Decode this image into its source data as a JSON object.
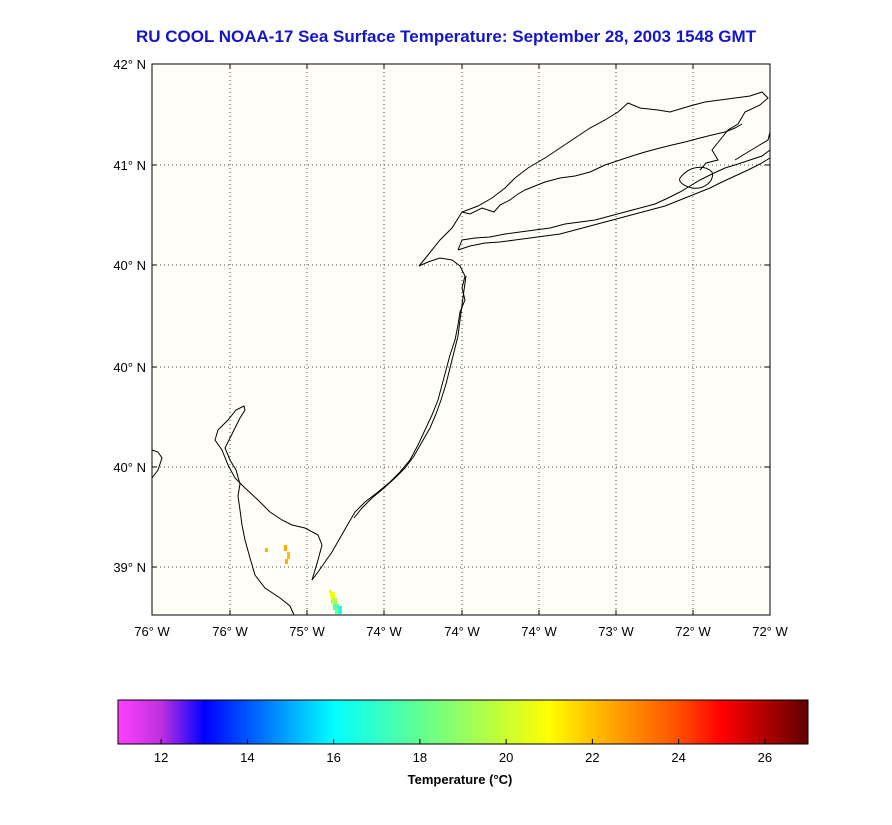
{
  "chart_data": {
    "type": "heatmap",
    "title": "RU COOL  NOAA-17  Sea Surface Temperature:  September 28, 2003 1548 GMT",
    "x_ticks": [
      "76° W",
      "76° W",
      "75° W",
      "74° W",
      "74° W",
      "74° W",
      "73° W",
      "72° W",
      "72° W"
    ],
    "y_ticks": [
      "42° N",
      "41° N",
      "40° N",
      "40° N",
      "40° N",
      "39° N"
    ],
    "grid": true,
    "grid_style": "dotted",
    "colorbar": {
      "label": "Temperature (°C)",
      "range": [
        11,
        27
      ],
      "ticks": [
        12,
        14,
        16,
        18,
        20,
        22,
        24,
        26
      ],
      "stops": [
        {
          "t": 11,
          "color": "#ff40ff"
        },
        {
          "t": 12,
          "color": "#c030e0"
        },
        {
          "t": 13,
          "color": "#0000ff"
        },
        {
          "t": 16,
          "color": "#00ffff"
        },
        {
          "t": 18,
          "color": "#60ff90"
        },
        {
          "t": 21,
          "color": "#ffff00"
        },
        {
          "t": 22,
          "color": "#ffc000"
        },
        {
          "t": 24,
          "color": "#ff5000"
        },
        {
          "t": 25,
          "color": "#ff0000"
        },
        {
          "t": 27,
          "color": "#600000"
        }
      ]
    },
    "sst_patches": [
      {
        "region": "delaware-bay",
        "temp": 22.2
      },
      {
        "region": "delaware-bay",
        "temp": 22.5
      },
      {
        "region": "delaware-bay",
        "temp": 22.0
      },
      {
        "region": "delaware-bay",
        "temp": 22.3
      },
      {
        "region": "off-cape-may",
        "temp": 20.8
      },
      {
        "region": "off-cape-may",
        "temp": 19.5
      },
      {
        "region": "off-cape-may",
        "temp": 17.8
      },
      {
        "region": "off-cape-may",
        "temp": 18.5
      },
      {
        "region": "off-cape-may",
        "temp": 16.6
      },
      {
        "region": "off-cape-may",
        "temp": 20.2
      }
    ]
  },
  "colors": {
    "title": "#1515cc",
    "map_background": "#fffff8",
    "coastline": "#000000"
  }
}
